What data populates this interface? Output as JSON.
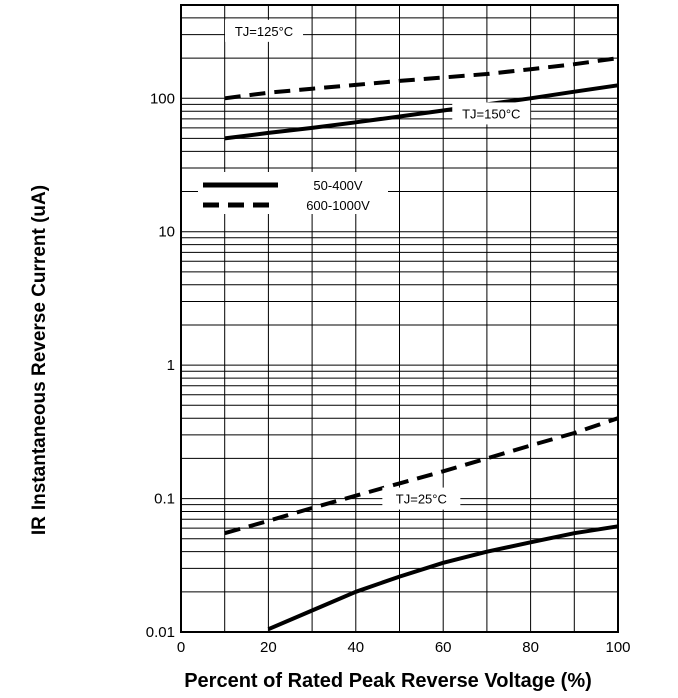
{
  "chart_data": {
    "type": "line",
    "title": "",
    "xlabel": "Percent of Rated Peak Reverse Voltage (%)",
    "ylabel_prefix": "IR",
    "ylabel": "Instantaneous Reverse Current (uA)",
    "xlim": [
      0,
      100
    ],
    "ylim": [
      0.01,
      500
    ],
    "yscale": "log",
    "grid": true,
    "x_ticks": [
      0,
      20,
      40,
      60,
      80,
      100
    ],
    "x_tick_labels": [
      "0",
      "20",
      "40",
      "60",
      "80",
      "100"
    ],
    "y_ticks": [
      0.01,
      0.1,
      1,
      10,
      100
    ],
    "y_tick_labels": [
      "0.01",
      "0.1",
      "1",
      "10",
      "100"
    ],
    "legend": {
      "placement": "upper-left",
      "entries": [
        {
          "label": "50-400V",
          "style": "solid"
        },
        {
          "label": "600-1000V",
          "style": "dashed"
        }
      ]
    },
    "series": [
      {
        "style": "solid",
        "x": [
          10,
          20,
          30,
          40,
          50,
          60,
          70,
          80,
          90,
          100
        ],
        "y": [
          50,
          55,
          60,
          66,
          73,
          81,
          90,
          100,
          112,
          125
        ]
      },
      {
        "style": "dashed",
        "x": [
          10,
          20,
          30,
          40,
          50,
          60,
          70,
          80,
          90,
          100
        ],
        "y": [
          100,
          110,
          118,
          126,
          135,
          143,
          152,
          165,
          180,
          200
        ]
      },
      {
        "style": "dashed",
        "x": [
          10,
          20,
          30,
          40,
          50,
          60,
          70,
          80,
          90,
          100
        ],
        "y": [
          0.055,
          0.068,
          0.085,
          0.105,
          0.13,
          0.16,
          0.2,
          0.25,
          0.31,
          0.4
        ]
      },
      {
        "style": "solid",
        "x": [
          20,
          30,
          40,
          50,
          60,
          70,
          80,
          90,
          100
        ],
        "y": [
          0.0105,
          0.0145,
          0.02,
          0.026,
          0.033,
          0.04,
          0.047,
          0.055,
          0.062
        ]
      }
    ],
    "annotations": [
      {
        "text": "TJ=125°C",
        "x": 19,
        "y": 320
      },
      {
        "text": "TJ=150°C",
        "x": 71,
        "y": 77
      },
      {
        "text": "TJ=25°C",
        "x": 55,
        "y": 0.1
      }
    ]
  }
}
